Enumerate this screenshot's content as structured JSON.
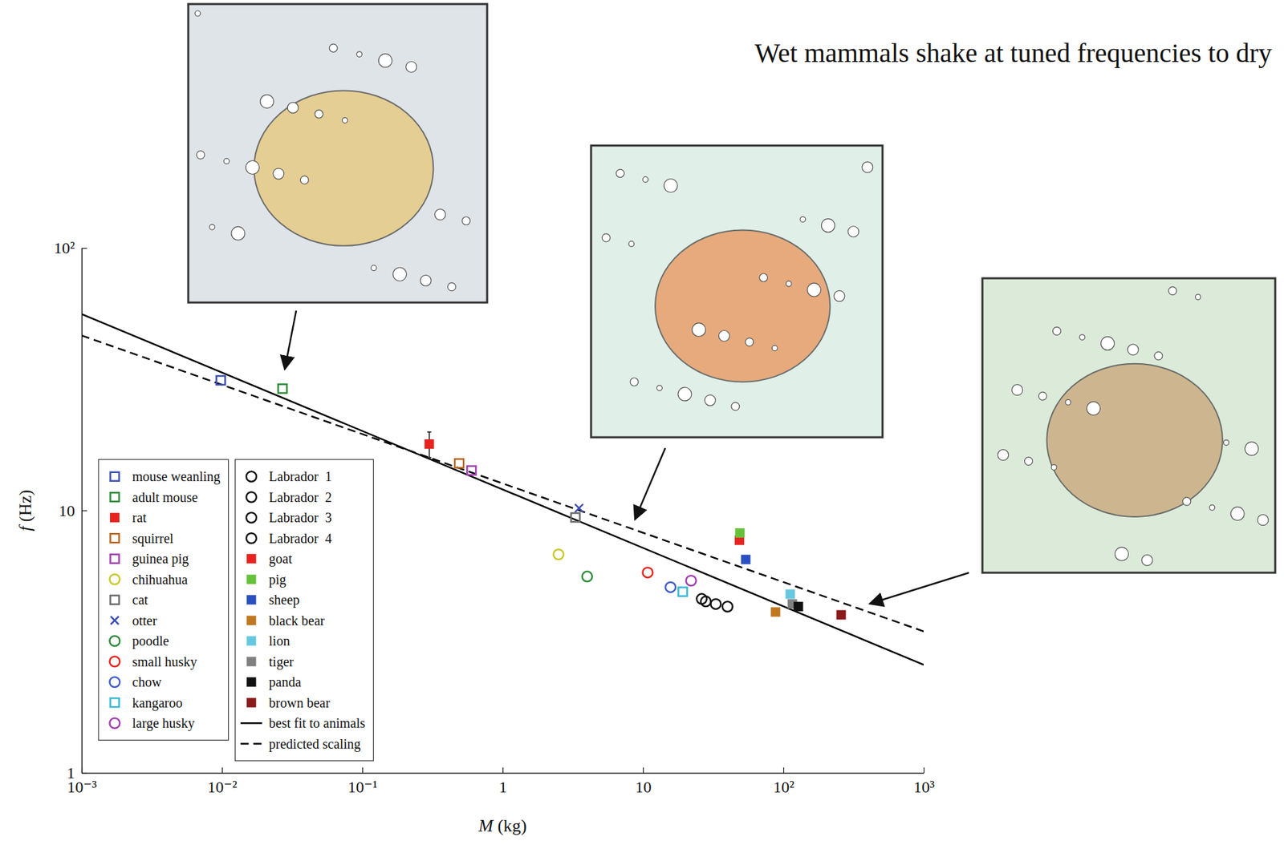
{
  "chart_data": {
    "type": "scatter",
    "title": "Wet mammals shake at tuned frequencies to dry",
    "xlabel": "M (kg)",
    "ylabel": "f (Hz)",
    "log": true,
    "grid": false,
    "legend": "lower left",
    "xlim": [
      0.001,
      1000
    ],
    "ylim": [
      1,
      100
    ],
    "xticks": [
      {
        "value": 0.001,
        "label": "10⁻³"
      },
      {
        "value": 0.01,
        "label": "10⁻²"
      },
      {
        "value": 0.1,
        "label": "10⁻¹"
      },
      1,
      10,
      {
        "value": 100,
        "label": "10²"
      },
      {
        "value": 1000,
        "label": "10³"
      }
    ],
    "yticks": [
      1,
      10,
      {
        "value": 100,
        "label": "10²"
      }
    ],
    "series": [
      {
        "name": "mouse weanling",
        "color": "#3a4fb5",
        "marker": "square-open",
        "x": [
          0.0098
        ],
        "values": [
          31.3
        ]
      },
      {
        "name": "adult mouse",
        "color": "#2e8b3a",
        "marker": "square-open",
        "x": [
          0.027
        ],
        "values": [
          29.1
        ]
      },
      {
        "name": "rat",
        "color": "#e8231f",
        "marker": "square",
        "x": [
          0.3
        ],
        "values": [
          17.9
        ],
        "errors": [
          2
        ]
      },
      {
        "name": "squirrel",
        "color": "#b8651e",
        "marker": "square-open",
        "x": [
          0.49
        ],
        "values": [
          15.1
        ]
      },
      {
        "name": "guinea pig",
        "color": "#a23fb0",
        "marker": "square-open",
        "x": [
          0.6
        ],
        "values": [
          14.2
        ]
      },
      {
        "name": "chihuahua",
        "color": "#c8c82a",
        "marker": "circle-open",
        "x": [
          2.5
        ],
        "values": [
          6.8
        ]
      },
      {
        "name": "cat",
        "color": "#6b6b6b",
        "marker": "square-open",
        "x": [
          3.3
        ],
        "values": [
          9.4
        ]
      },
      {
        "name": "otter",
        "color": "#3d50b8",
        "marker": "x",
        "x": [
          3.5
        ],
        "values": [
          10.2
        ]
      },
      {
        "name": "poodle",
        "color": "#2e8b3a",
        "marker": "circle-open",
        "x": [
          4.0
        ],
        "values": [
          5.6
        ]
      },
      {
        "name": "small husky",
        "color": "#e8231f",
        "marker": "circle-open",
        "x": [
          10.8
        ],
        "values": [
          5.8
        ]
      },
      {
        "name": "chow",
        "color": "#3f5cc8",
        "marker": "circle-open",
        "x": [
          15.7
        ],
        "values": [
          5.1
        ]
      },
      {
        "name": "kangaroo",
        "color": "#36b8d8",
        "marker": "square-open",
        "x": [
          19.2
        ],
        "values": [
          4.9
        ]
      },
      {
        "name": "large husky",
        "color": "#a23fb0",
        "marker": "circle-open",
        "x": [
          22
        ],
        "values": [
          5.4
        ]
      },
      {
        "name": "Labrador  1",
        "color": "#111111",
        "marker": "circle-open",
        "x": [
          26.2
        ],
        "values": [
          4.6
        ]
      },
      {
        "name": "Labrador  2",
        "color": "#111111",
        "marker": "circle-open",
        "x": [
          28
        ],
        "values": [
          4.5
        ]
      },
      {
        "name": "Labrador  3",
        "color": "#111111",
        "marker": "circle-open",
        "x": [
          33
        ],
        "values": [
          4.4
        ]
      },
      {
        "name": "Labrador  4",
        "color": "#111111",
        "marker": "circle-open",
        "x": [
          40
        ],
        "values": [
          4.3
        ]
      },
      {
        "name": "goat",
        "color": "#e8231f",
        "marker": "square",
        "x": [
          48.6
        ],
        "values": [
          7.7
        ]
      },
      {
        "name": "pig",
        "color": "#66c23a",
        "marker": "square",
        "x": [
          49
        ],
        "values": [
          8.2
        ]
      },
      {
        "name": "sheep",
        "color": "#2a4fc0",
        "marker": "square",
        "x": [
          54
        ],
        "values": [
          6.5
        ]
      },
      {
        "name": "black bear",
        "color": "#c07820",
        "marker": "square",
        "x": [
          88
        ],
        "values": [
          4.1
        ]
      },
      {
        "name": "lion",
        "color": "#66c8e0",
        "marker": "square",
        "x": [
          112
        ],
        "values": [
          4.8
        ]
      },
      {
        "name": "tiger",
        "color": "#808080",
        "marker": "square",
        "x": [
          116
        ],
        "values": [
          4.4
        ]
      },
      {
        "name": "panda",
        "color": "#111111",
        "marker": "square",
        "x": [
          128
        ],
        "values": [
          4.3
        ]
      },
      {
        "name": "brown bear",
        "color": "#8b1a1a",
        "marker": "square",
        "x": [
          258
        ],
        "values": [
          4.0
        ]
      },
      {
        "name": "best fit to animals",
        "type": "line",
        "color": "#000000",
        "line_style": "solid",
        "x": [
          0.001,
          1000
        ],
        "values": [
          56,
          2.58
        ]
      },
      {
        "name": "predicted scaling",
        "type": "line",
        "color": "#000000",
        "line_style": "dashed",
        "x": [
          0.001,
          1000
        ],
        "values": [
          46.4,
          3.46
        ]
      }
    ]
  }
}
